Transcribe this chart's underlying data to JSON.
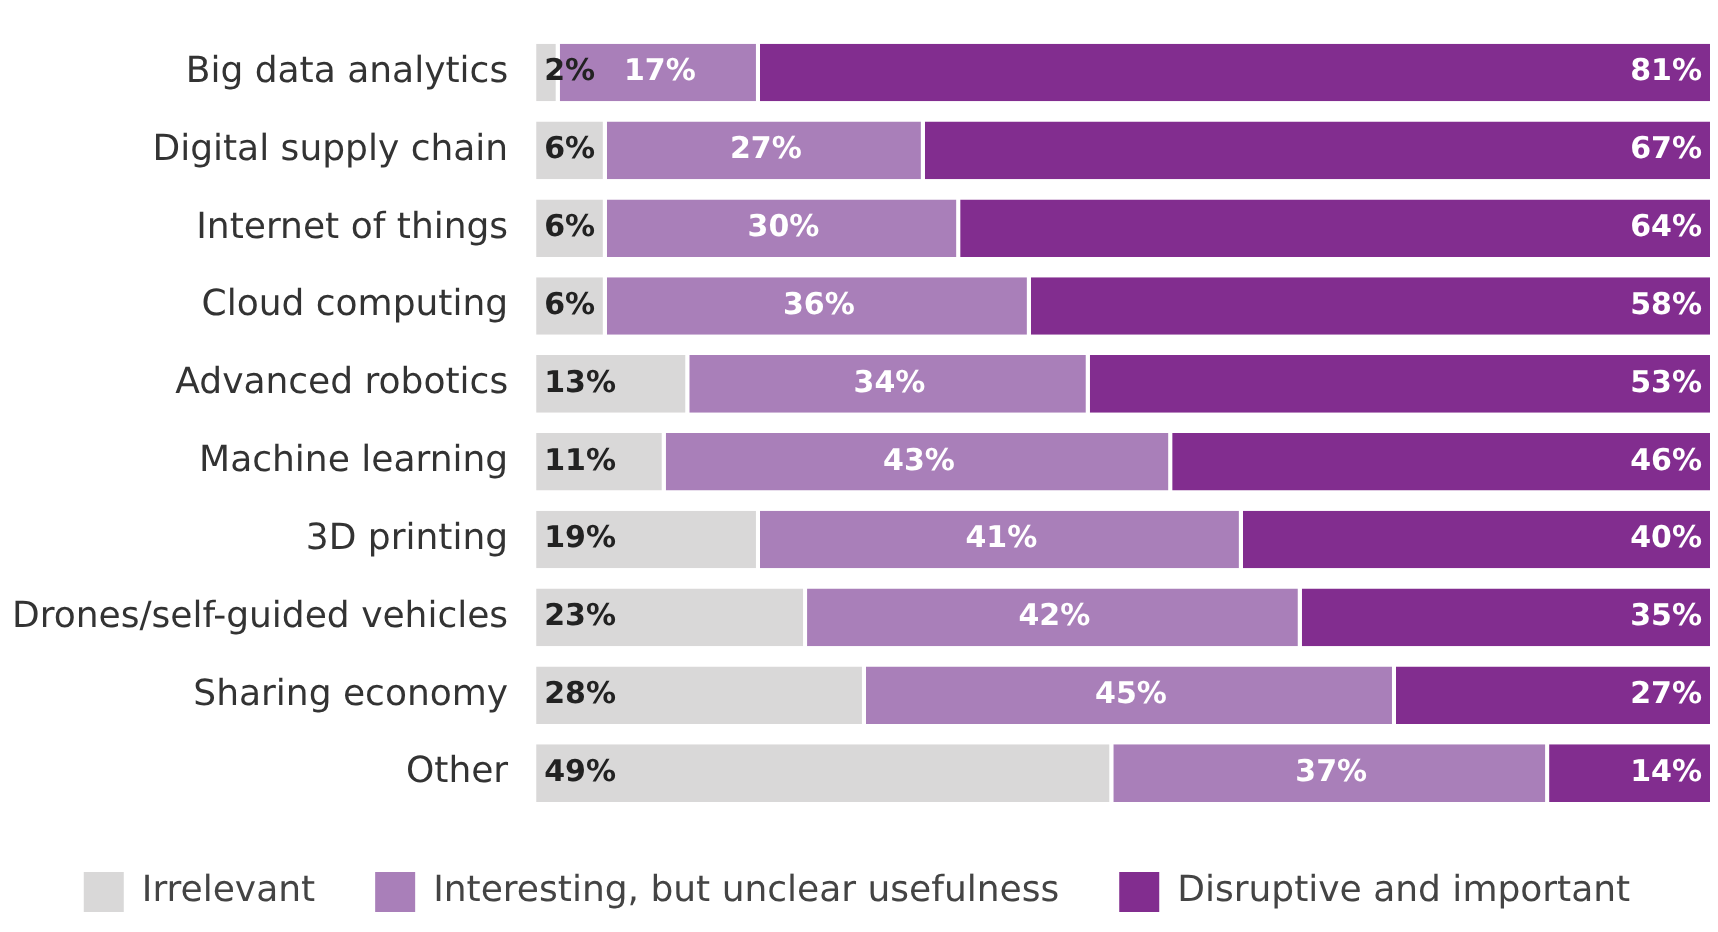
{
  "chart_data": {
    "type": "bar",
    "orientation": "horizontal",
    "stacked": true,
    "categories": [
      "Big data analytics",
      "Digital supply chain",
      "Internet of things",
      "Cloud computing",
      "Advanced robotics",
      "Machine learning",
      "3D printing",
      "Drones/self-guided vehicles",
      "Sharing economy",
      "Other"
    ],
    "series": [
      {
        "name": "Irrelevant",
        "color": "#d9d8d8",
        "values": [
          2,
          6,
          6,
          6,
          13,
          11,
          19,
          23,
          28,
          49
        ],
        "value_labels": [
          "2%",
          "6%",
          "6%",
          "6%",
          "13%",
          "11%",
          "19%",
          "23%",
          "28%",
          "49%"
        ]
      },
      {
        "name": "Interesting, but unclear usefulness",
        "color": "#a97fb9",
        "values": [
          17,
          27,
          30,
          36,
          34,
          43,
          41,
          42,
          45,
          37
        ],
        "value_labels": [
          "17%",
          "27%",
          "30%",
          "36%",
          "34%",
          "43%",
          "41%",
          "42%",
          "45%",
          "37%"
        ]
      },
      {
        "name": "Disruptive and important",
        "color": "#822d8f",
        "values": [
          81,
          67,
          64,
          58,
          53,
          46,
          40,
          35,
          27,
          14
        ],
        "value_labels": [
          "81%",
          "67%",
          "64%",
          "58%",
          "53%",
          "46%",
          "40%",
          "35%",
          "27%",
          "14%"
        ]
      }
    ],
    "xlim": [
      0,
      100
    ],
    "tick_labels": "y",
    "legend": "bottom"
  }
}
